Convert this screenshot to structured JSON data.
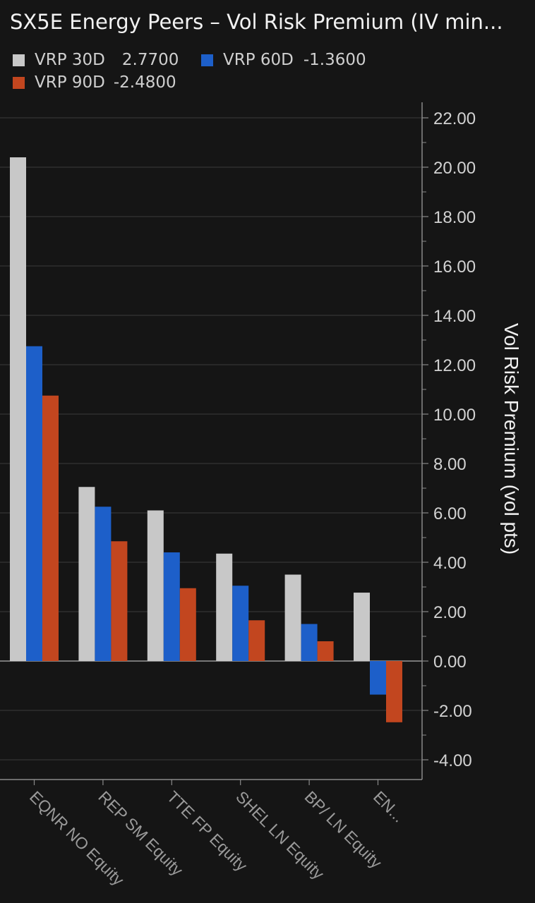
{
  "chart_data": {
    "type": "bar",
    "title": "SX5E Energy Peers – Vol Risk Premium (IV min...",
    "ylabel": "Vol Risk Premium (vol pts)",
    "xlabel": "",
    "categories": [
      "EQNR NO Equity",
      "REP SM Equity",
      "TTE FP Equity",
      "SHEL LN Equity",
      "BP/ LN Equity",
      "EN..."
    ],
    "series": [
      {
        "name": "VRP 30D",
        "legend_value": "2.7700",
        "color": "#c8c8c8",
        "values": [
          20.4,
          7.05,
          6.1,
          4.35,
          3.5,
          2.77
        ]
      },
      {
        "name": "VRP 60D",
        "legend_value": "-1.3600",
        "color": "#1d5fc9",
        "values": [
          12.75,
          6.25,
          4.4,
          3.05,
          1.5,
          -1.36
        ]
      },
      {
        "name": "VRP 90D",
        "legend_value": "-2.4800",
        "color": "#c2461f",
        "values": [
          10.75,
          4.85,
          2.95,
          1.65,
          0.8,
          -2.48
        ]
      }
    ],
    "ylim": [
      -4.8,
      22.8
    ],
    "yticks": [
      22.0,
      20.0,
      18.0,
      16.0,
      14.0,
      12.0,
      10.0,
      8.0,
      6.0,
      4.0,
      2.0,
      0.0,
      -2.0,
      -4.0
    ],
    "ytick_labels": [
      "22.00",
      "20.00",
      "18.00",
      "16.00",
      "14.00",
      "12.00",
      "10.00",
      "8.00",
      "6.00",
      "4.00",
      "2.00",
      "0.00",
      "-2.00",
      "-4.00"
    ],
    "grid": true,
    "legend_position": "top-left",
    "y_axis_side": "right"
  },
  "colors": {
    "background": "#151515",
    "grid": "#3a3a3a",
    "axis": "#8a8a8a",
    "tick_label": "#d2d2d2",
    "category_label": "#9a9a9a"
  }
}
